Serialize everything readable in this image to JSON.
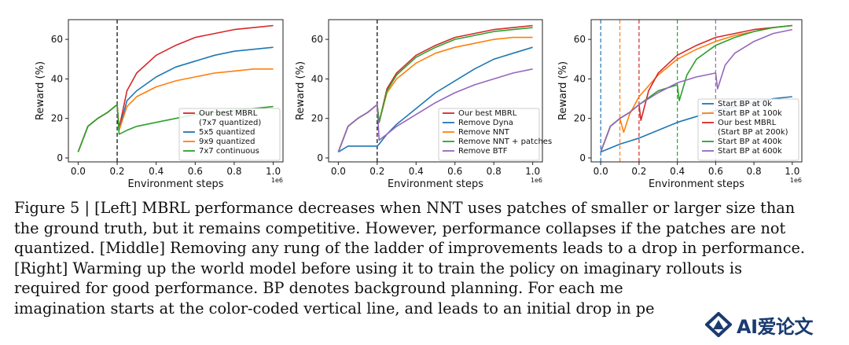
{
  "chart_data": [
    {
      "type": "line",
      "xlabel": "Environment steps",
      "ylabel": "Reward (%)",
      "xlim": [
        -0.05,
        1.05
      ],
      "ylim": [
        -2,
        70
      ],
      "xticks": [
        "0.0",
        "0.2",
        "0.4",
        "0.6",
        "0.8",
        "1.0"
      ],
      "yticks": [
        "0",
        "20",
        "40",
        "60"
      ],
      "x_scale_label": "1e6",
      "legend": "lower-right",
      "vlines": [
        {
          "x": 0.2,
          "color": "#000000"
        }
      ],
      "series": [
        {
          "name": "Our best MBRL\n(7x7 quantized)",
          "color": "#d62728",
          "x": [
            0.0,
            0.05,
            0.1,
            0.15,
            0.2,
            0.21,
            0.25,
            0.3,
            0.4,
            0.5,
            0.6,
            0.7,
            0.8,
            0.9,
            1.0
          ],
          "values": [
            3,
            16,
            20,
            23,
            27,
            15,
            34,
            43,
            52,
            57,
            61,
            63,
            65,
            66,
            67
          ]
        },
        {
          "name": "5x5 quantized",
          "color": "#1f77b4",
          "x": [
            0.0,
            0.05,
            0.1,
            0.15,
            0.2,
            0.21,
            0.25,
            0.3,
            0.4,
            0.5,
            0.6,
            0.7,
            0.8,
            0.9,
            1.0
          ],
          "values": [
            3,
            16,
            20,
            23,
            27,
            14,
            29,
            34,
            41,
            46,
            49,
            52,
            54,
            55,
            56
          ]
        },
        {
          "name": "9x9 quantized",
          "color": "#ff7f0e",
          "x": [
            0.0,
            0.05,
            0.1,
            0.15,
            0.2,
            0.21,
            0.25,
            0.3,
            0.4,
            0.5,
            0.6,
            0.7,
            0.8,
            0.9,
            1.0
          ],
          "values": [
            3,
            16,
            20,
            23,
            27,
            14,
            26,
            31,
            36,
            39,
            41,
            43,
            44,
            45,
            45
          ]
        },
        {
          "name": "7x7 continuous",
          "color": "#2ca02c",
          "x": [
            0.0,
            0.05,
            0.1,
            0.15,
            0.2,
            0.21,
            0.25,
            0.3,
            0.4,
            0.5,
            0.6,
            0.7,
            0.8,
            0.9,
            1.0
          ],
          "values": [
            3,
            16,
            20,
            23,
            27,
            12,
            14,
            16,
            18,
            20,
            22,
            23,
            24,
            25,
            26
          ]
        }
      ]
    },
    {
      "type": "line",
      "xlabel": "Environment steps",
      "ylabel": "Reward (%)",
      "xlim": [
        -0.05,
        1.05
      ],
      "ylim": [
        -2,
        70
      ],
      "xticks": [
        "0.0",
        "0.2",
        "0.4",
        "0.6",
        "0.8",
        "1.0"
      ],
      "yticks": [
        "0",
        "20",
        "40",
        "60"
      ],
      "x_scale_label": "1e6",
      "legend": "lower-right",
      "vlines": [
        {
          "x": 0.2,
          "color": "#000000"
        }
      ],
      "series": [
        {
          "name": "Our best MBRL",
          "color": "#d62728",
          "x": [
            0.0,
            0.05,
            0.1,
            0.15,
            0.2,
            0.21,
            0.25,
            0.3,
            0.4,
            0.5,
            0.6,
            0.7,
            0.8,
            0.9,
            1.0
          ],
          "values": [
            3,
            16,
            20,
            23,
            27,
            18,
            35,
            43,
            52,
            57,
            61,
            63,
            65,
            66,
            67
          ]
        },
        {
          "name": "Remove Dyna",
          "color": "#1f77b4",
          "x": [
            0.0,
            0.05,
            0.1,
            0.15,
            0.2,
            0.21,
            0.25,
            0.3,
            0.4,
            0.5,
            0.6,
            0.7,
            0.8,
            0.9,
            1.0
          ],
          "values": [
            3,
            6,
            6,
            6,
            6,
            7,
            12,
            17,
            25,
            33,
            39,
            45,
            50,
            53,
            56
          ]
        },
        {
          "name": "Remove NNT",
          "color": "#ff7f0e",
          "x": [
            0.0,
            0.05,
            0.1,
            0.15,
            0.2,
            0.21,
            0.25,
            0.3,
            0.4,
            0.5,
            0.6,
            0.7,
            0.8,
            0.9,
            1.0
          ],
          "values": [
            3,
            16,
            20,
            23,
            27,
            18,
            33,
            40,
            48,
            53,
            56,
            58,
            60,
            61,
            61
          ]
        },
        {
          "name": "Remove NNT + patches",
          "color": "#2ca02c",
          "x": [
            0.0,
            0.05,
            0.1,
            0.15,
            0.2,
            0.21,
            0.25,
            0.3,
            0.4,
            0.5,
            0.6,
            0.7,
            0.8,
            0.9,
            1.0
          ],
          "values": [
            3,
            16,
            20,
            23,
            27,
            18,
            34,
            42,
            51,
            56,
            60,
            62,
            64,
            65,
            66
          ]
        },
        {
          "name": "Remove BTF",
          "color": "#9467bd",
          "x": [
            0.0,
            0.05,
            0.1,
            0.15,
            0.2,
            0.21,
            0.25,
            0.3,
            0.4,
            0.5,
            0.6,
            0.7,
            0.8,
            0.9,
            1.0
          ],
          "values": [
            3,
            16,
            20,
            23,
            27,
            9,
            12,
            16,
            22,
            28,
            33,
            37,
            40,
            43,
            45
          ]
        }
      ]
    },
    {
      "type": "line",
      "xlabel": "Environment steps",
      "ylabel": "Reward (%)",
      "xlim": [
        -0.05,
        1.05
      ],
      "ylim": [
        -2,
        70
      ],
      "xticks": [
        "0.0",
        "0.2",
        "0.4",
        "0.6",
        "0.8",
        "1.0"
      ],
      "yticks": [
        "0",
        "20",
        "40",
        "60"
      ],
      "x_scale_label": "1e6",
      "legend": "lower-right",
      "vlines": [
        {
          "x": 0.0,
          "color": "#1f77b4"
        },
        {
          "x": 0.1,
          "color": "#ff7f0e"
        },
        {
          "x": 0.2,
          "color": "#d62728"
        },
        {
          "x": 0.4,
          "color": "#2ca02c"
        },
        {
          "x": 0.6,
          "color": "#9467bd"
        }
      ],
      "series": [
        {
          "name": "Start BP at 0k",
          "color": "#1f77b4",
          "x": [
            0.0,
            0.05,
            0.1,
            0.2,
            0.3,
            0.4,
            0.5,
            0.6,
            0.7,
            0.8,
            0.9,
            1.0
          ],
          "values": [
            3,
            5,
            7,
            10,
            14,
            18,
            21,
            24,
            26,
            28,
            30,
            31
          ]
        },
        {
          "name": "Start BP at 100k",
          "color": "#ff7f0e",
          "x": [
            0.0,
            0.05,
            0.1,
            0.12,
            0.15,
            0.2,
            0.3,
            0.4,
            0.5,
            0.6,
            0.7,
            0.8,
            0.9,
            1.0
          ],
          "values": [
            3,
            16,
            20,
            13,
            22,
            31,
            42,
            50,
            55,
            59,
            62,
            64,
            66,
            67
          ]
        },
        {
          "name": "Our best MBRL\n(Start BP at 200k)",
          "color": "#d62728",
          "x": [
            0.0,
            0.05,
            0.1,
            0.15,
            0.2,
            0.21,
            0.25,
            0.3,
            0.4,
            0.5,
            0.6,
            0.7,
            0.8,
            0.9,
            1.0
          ],
          "values": [
            3,
            16,
            20,
            23,
            27,
            19,
            34,
            43,
            52,
            57,
            61,
            63,
            65,
            66,
            67
          ]
        },
        {
          "name": "Start BP at 400k",
          "color": "#2ca02c",
          "x": [
            0.0,
            0.05,
            0.1,
            0.15,
            0.2,
            0.3,
            0.4,
            0.41,
            0.45,
            0.5,
            0.6,
            0.7,
            0.8,
            0.9,
            1.0
          ],
          "values": [
            3,
            16,
            20,
            23,
            27,
            34,
            37,
            29,
            42,
            50,
            57,
            61,
            64,
            66,
            67
          ]
        },
        {
          "name": "Start BP at 600k",
          "color": "#9467bd",
          "x": [
            0.0,
            0.05,
            0.1,
            0.15,
            0.2,
            0.3,
            0.4,
            0.5,
            0.6,
            0.61,
            0.65,
            0.7,
            0.8,
            0.9,
            1.0
          ],
          "values": [
            3,
            16,
            20,
            23,
            27,
            33,
            38,
            41,
            43,
            35,
            47,
            53,
            59,
            63,
            65
          ]
        }
      ]
    }
  ],
  "caption": {
    "lines": [
      "Figure 5 | [Left] MBRL performance decreases when NNT uses patches of smaller or larger size than",
      "the ground truth, but it remains competitive. However, performance collapses if the patches are not",
      "quantized. [Middle] Removing any rung of the ladder of improvements leads to a drop in performance.",
      "[Right] Warming up the world model before using it to train the policy on imaginary rollouts is",
      "required for good performance. BP denotes background planning. For each me",
      "imagination starts at the color-coded vertical line, and leads to an initial drop in pe"
    ]
  },
  "watermark": {
    "text": "AI爱论文",
    "color": "#1a3b70"
  }
}
